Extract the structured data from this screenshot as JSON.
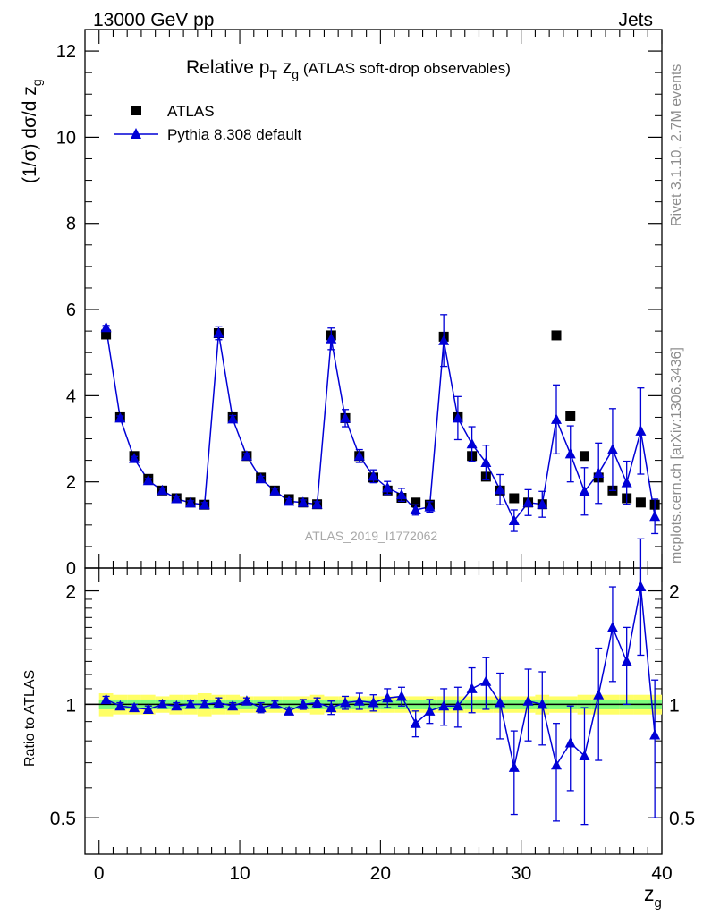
{
  "header": {
    "left": "13000 GeV pp",
    "right": "Jets"
  },
  "side_labels": {
    "rivet": "Rivet 3.1.10,  2.7M events",
    "mcplots": "mcplots.cern.ch [arXiv:1306.3436]"
  },
  "colors": {
    "data": "#000000",
    "mc": "#0000d6",
    "band_inner": "#7cfc7c",
    "band_outer": "#ffff66"
  },
  "chart_data": [
    {
      "type": "scatter",
      "panel": "main",
      "title": "Relative pT zg (ATLAS soft-drop observables)",
      "title_parts": {
        "prefix": "Relative p",
        "sub1": "T",
        "mid": " z",
        "sub2": "g",
        "suffix": " (ATLAS soft-drop observables)"
      },
      "ylabel": "(1/σ) dσ/d zg",
      "ylabel_parts": {
        "main": "(1/σ) dσ/d z",
        "sub": "g"
      },
      "xlabel": "zg",
      "xlabel_parts": {
        "main": "z",
        "sub": "g"
      },
      "watermark": "ATLAS_2019_I1772062",
      "xlim": [
        -1,
        40
      ],
      "ylim": [
        0,
        12.5
      ],
      "x_ticks": [
        0,
        10,
        20,
        30,
        40
      ],
      "y_ticks": [
        0,
        2,
        4,
        6,
        8,
        10,
        12
      ],
      "grid": false,
      "legend_position": "top-left",
      "legend": [
        "ATLAS",
        "Pythia 8.308 default"
      ],
      "x": [
        0.5,
        1.5,
        2.5,
        3.5,
        4.5,
        5.5,
        6.5,
        7.5,
        8.5,
        9.5,
        10.5,
        11.5,
        12.5,
        13.5,
        14.5,
        15.5,
        16.5,
        17.5,
        18.5,
        19.5,
        20.5,
        21.5,
        22.5,
        23.5,
        24.5,
        25.5,
        26.5,
        27.5,
        28.5,
        29.5,
        30.5,
        31.5,
        32.5,
        33.5,
        34.5,
        35.5,
        36.5,
        37.5,
        38.5,
        39.5
      ],
      "series": [
        {
          "name": "ATLAS",
          "marker": "square",
          "values": [
            5.42,
            3.5,
            2.6,
            2.07,
            1.8,
            1.62,
            1.52,
            1.47,
            5.45,
            3.5,
            2.6,
            2.1,
            1.8,
            1.6,
            1.52,
            1.48,
            5.4,
            3.48,
            2.6,
            2.1,
            1.8,
            1.63,
            1.52,
            1.47,
            5.37,
            3.5,
            2.6,
            2.12,
            1.8,
            1.62,
            1.52,
            1.48,
            5.4,
            3.52,
            2.6,
            2.1,
            1.8,
            1.62,
            1.52,
            1.47
          ]
        },
        {
          "name": "Pythia 8.308 default",
          "marker": "triangle",
          "values": [
            5.58,
            3.48,
            2.54,
            2.03,
            1.8,
            1.61,
            1.51,
            1.47,
            5.45,
            3.46,
            2.6,
            2.07,
            1.79,
            1.55,
            1.52,
            1.48,
            5.32,
            3.48,
            2.6,
            2.13,
            1.86,
            1.7,
            1.35,
            1.42,
            5.28,
            3.48,
            2.88,
            2.45,
            1.82,
            1.1,
            1.52,
            1.48,
            3.45,
            2.65,
            1.78,
            2.2,
            2.75,
            1.98,
            3.18,
            1.2
          ],
          "errors": [
            0.05,
            0.05,
            0.05,
            0.05,
            0.05,
            0.05,
            0.05,
            0.05,
            0.15,
            0.08,
            0.06,
            0.06,
            0.06,
            0.06,
            0.06,
            0.06,
            0.25,
            0.2,
            0.15,
            0.15,
            0.15,
            0.15,
            0.12,
            0.12,
            0.6,
            0.5,
            0.4,
            0.4,
            0.35,
            0.25,
            0.3,
            0.3,
            0.8,
            0.65,
            0.55,
            0.7,
            0.95,
            0.5,
            1.0,
            0.4
          ]
        }
      ]
    },
    {
      "type": "scatter",
      "panel": "ratio",
      "ylabel": "Ratio to ATLAS",
      "ylim": [
        0.4,
        2.3
      ],
      "y_ticks": [
        0.5,
        1,
        2
      ],
      "y_scale": "log",
      "series": [
        {
          "name": "Pythia 8.308 default",
          "values": [
            1.03,
            0.99,
            0.98,
            0.97,
            1.0,
            0.99,
            1.0,
            1.0,
            1.01,
            0.99,
            1.02,
            0.98,
            1.0,
            0.96,
            1.0,
            1.01,
            0.98,
            1.01,
            1.02,
            1.01,
            1.04,
            1.05,
            0.89,
            0.96,
            0.99,
            0.99,
            1.1,
            1.15,
            1.01,
            0.68,
            1.02,
            1.0,
            0.69,
            0.79,
            0.73,
            1.06,
            1.6,
            1.3,
            2.05,
            0.83
          ],
          "errors": [
            0.02,
            0.02,
            0.02,
            0.02,
            0.02,
            0.02,
            0.02,
            0.02,
            0.03,
            0.02,
            0.02,
            0.03,
            0.02,
            0.02,
            0.03,
            0.03,
            0.04,
            0.04,
            0.05,
            0.05,
            0.06,
            0.06,
            0.07,
            0.07,
            0.11,
            0.12,
            0.15,
            0.18,
            0.2,
            0.17,
            0.22,
            0.22,
            0.2,
            0.2,
            0.25,
            0.35,
            0.45,
            0.3,
            0.7,
            0.33
          ],
          "band_inner": [
            0.03,
            0.03,
            0.03,
            0.03,
            0.03,
            0.03,
            0.03,
            0.03,
            0.03,
            0.03,
            0.03,
            0.03,
            0.03,
            0.03,
            0.03,
            0.03,
            0.03,
            0.03,
            0.03,
            0.03,
            0.03,
            0.03,
            0.03,
            0.03,
            0.03,
            0.03,
            0.03,
            0.03,
            0.03,
            0.03,
            0.03,
            0.03,
            0.03,
            0.03,
            0.03,
            0.03,
            0.03,
            0.03,
            0.03,
            0.03
          ],
          "band_outer": [
            0.07,
            0.06,
            0.06,
            0.06,
            0.05,
            0.06,
            0.06,
            0.07,
            0.06,
            0.06,
            0.05,
            0.05,
            0.05,
            0.05,
            0.05,
            0.06,
            0.05,
            0.05,
            0.05,
            0.05,
            0.05,
            0.05,
            0.05,
            0.05,
            0.05,
            0.05,
            0.05,
            0.05,
            0.05,
            0.05,
            0.05,
            0.06,
            0.05,
            0.05,
            0.06,
            0.06,
            0.06,
            0.06,
            0.06,
            0.06
          ]
        }
      ]
    }
  ]
}
